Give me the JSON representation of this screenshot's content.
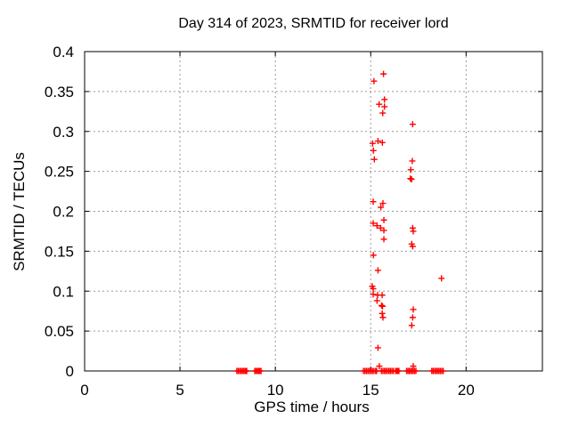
{
  "chart_data": {
    "type": "scatter",
    "title": "Day 314 of 2023, SRMTID for receiver lord",
    "xlabel": "GPS time / hours",
    "ylabel": "SRMTID / TECUs",
    "xlim": [
      0,
      24
    ],
    "ylim": [
      0,
      0.4
    ],
    "xticks": [
      {
        "value": 0,
        "label": "0"
      },
      {
        "value": 5,
        "label": "5"
      },
      {
        "value": 10,
        "label": "10"
      },
      {
        "value": 15,
        "label": "15"
      },
      {
        "value": 20,
        "label": "20"
      }
    ],
    "yticks": [
      {
        "value": 0.0,
        "label": "0"
      },
      {
        "value": 0.05,
        "label": "0.05"
      },
      {
        "value": 0.1,
        "label": "0.1"
      },
      {
        "value": 0.15,
        "label": "0.15"
      },
      {
        "value": 0.2,
        "label": "0.2"
      },
      {
        "value": 0.25,
        "label": "0.25"
      },
      {
        "value": 0.3,
        "label": "0.3"
      },
      {
        "value": 0.35,
        "label": "0.35"
      },
      {
        "value": 0.4,
        "label": "0.4"
      }
    ],
    "grid": "dashed-major-both-axes",
    "legend": "none",
    "marker": {
      "shape": "plus",
      "size": 7,
      "color": "#ff0000"
    },
    "points": [
      [
        15.17,
        0.363
      ],
      [
        15.67,
        0.372
      ],
      [
        15.44,
        0.334
      ],
      [
        15.72,
        0.34
      ],
      [
        15.72,
        0.331
      ],
      [
        15.63,
        0.323
      ],
      [
        17.2,
        0.309
      ],
      [
        15.1,
        0.285
      ],
      [
        15.38,
        0.288
      ],
      [
        15.61,
        0.286
      ],
      [
        15.14,
        0.276
      ],
      [
        15.19,
        0.265
      ],
      [
        17.18,
        0.263
      ],
      [
        17.1,
        0.252
      ],
      [
        17.08,
        0.241
      ],
      [
        17.14,
        0.24
      ],
      [
        15.13,
        0.212
      ],
      [
        15.64,
        0.21
      ],
      [
        15.53,
        0.205
      ],
      [
        15.69,
        0.189
      ],
      [
        15.13,
        0.185
      ],
      [
        15.33,
        0.182
      ],
      [
        15.52,
        0.179
      ],
      [
        15.69,
        0.176
      ],
      [
        15.69,
        0.165
      ],
      [
        17.2,
        0.179
      ],
      [
        17.23,
        0.175
      ],
      [
        17.15,
        0.159
      ],
      [
        17.2,
        0.156
      ],
      [
        15.14,
        0.145
      ],
      [
        15.38,
        0.126
      ],
      [
        18.71,
        0.116
      ],
      [
        15.08,
        0.106
      ],
      [
        15.13,
        0.103
      ],
      [
        15.13,
        0.096
      ],
      [
        15.36,
        0.095
      ],
      [
        15.6,
        0.095
      ],
      [
        15.33,
        0.088
      ],
      [
        15.57,
        0.082
      ],
      [
        15.62,
        0.081
      ],
      [
        15.6,
        0.072
      ],
      [
        15.64,
        0.067
      ],
      [
        17.23,
        0.077
      ],
      [
        17.2,
        0.067
      ],
      [
        17.15,
        0.057
      ],
      [
        15.38,
        0.029
      ],
      [
        15.45,
        0.006
      ],
      [
        17.23,
        0.006
      ]
    ],
    "zero_value_runs_hours": [
      [
        7.98,
        8.42
      ],
      [
        8.45,
        8.5
      ],
      [
        8.92,
        9.25
      ],
      [
        14.62,
        15.17
      ],
      [
        15.26,
        15.31
      ],
      [
        15.56,
        16.19
      ],
      [
        16.31,
        16.48
      ],
      [
        16.88,
        17.37
      ],
      [
        18.2,
        18.8
      ]
    ]
  },
  "colors": {
    "background": "#ffffff",
    "border": "#000000",
    "grid": "#999999",
    "marker": "#ff0000",
    "text": "#000000"
  }
}
